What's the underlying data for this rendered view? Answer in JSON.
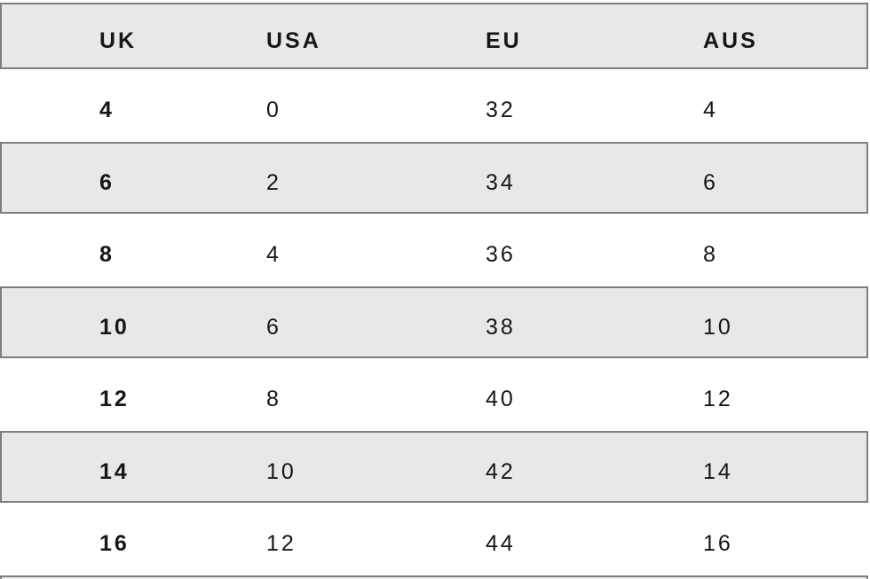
{
  "chart_data": {
    "type": "table",
    "columns": [
      "UK",
      "USA",
      "EU",
      "AUS"
    ],
    "rows": [
      [
        "4",
        "0",
        "32",
        "4"
      ],
      [
        "6",
        "2",
        "34",
        "6"
      ],
      [
        "8",
        "4",
        "36",
        "8"
      ],
      [
        "10",
        "6",
        "38",
        "10"
      ],
      [
        "12",
        "8",
        "40",
        "12"
      ],
      [
        "14",
        "10",
        "42",
        "14"
      ],
      [
        "16",
        "12",
        "44",
        "16"
      ]
    ],
    "title": "",
    "layout_hints": {
      "striped_rows": "header and rows 2,4,6 shaded",
      "first_column_bold": true,
      "partial_next_row_visible_at_bottom": true
    }
  },
  "colors": {
    "stripe_bg": "#e8e8e8",
    "stripe_border": "#7e7e7e",
    "text": "#161616",
    "page_bg": "#ffffff"
  }
}
